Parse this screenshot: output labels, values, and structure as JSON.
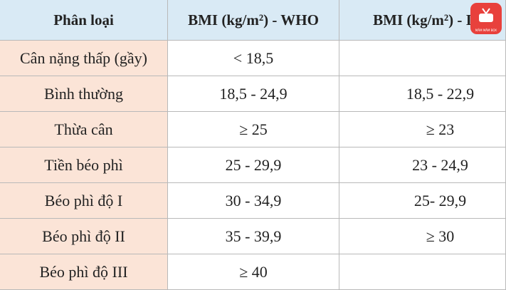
{
  "table": {
    "header": [
      "Phân loại",
      "BMI (kg/m²) - WHO",
      "BMI (kg/m²) - I"
    ],
    "rows": [
      [
        "Cân nặng thấp (gầy)",
        "< 18,5",
        null
      ],
      [
        "Bình thường",
        "18,5 - 24,9",
        "18,5 - 22,9"
      ],
      [
        "Thừa cân",
        "≥ 25",
        "≥ 23"
      ],
      [
        "Tiền béo phì",
        "25 - 29,9",
        "23 - 24,9"
      ],
      [
        "Béo phì độ I",
        "30 - 34,9",
        "25- 29,9"
      ],
      [
        "Béo phì độ II",
        "35 - 39,9",
        "≥ 30"
      ],
      [
        "Béo phì độ III",
        "≥ 40",
        null
      ]
    ]
  },
  "logo": {
    "text": "MÂM MÂM BOX"
  }
}
